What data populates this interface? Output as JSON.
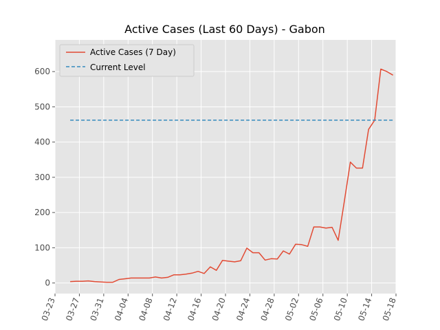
{
  "chart_data": {
    "type": "line",
    "title": "Active Cases (Last 60 Days) - Gabon",
    "xlabel": "",
    "ylabel": "",
    "x_ticks": [
      "03-23",
      "03-27",
      "03-31",
      "04-04",
      "04-08",
      "04-12",
      "04-16",
      "04-20",
      "04-24",
      "04-28",
      "05-02",
      "05-06",
      "05-10",
      "05-14",
      "05-18"
    ],
    "x_tick_days": [
      0,
      4,
      8,
      12,
      16,
      20,
      24,
      28,
      32,
      36,
      40,
      44,
      48,
      52,
      56
    ],
    "xlim_days": [
      0,
      56
    ],
    "y_ticks": [
      0,
      100,
      200,
      300,
      400,
      500,
      600
    ],
    "ylim": [
      -30,
      690
    ],
    "grid": true,
    "legend_position": "top-left",
    "series": [
      {
        "name": "Active Cases (7 Day)",
        "color": "#E24A33",
        "style": "solid",
        "x_days": [
          2.5,
          3.5,
          4.5,
          5.5,
          6.5,
          7.5,
          8.5,
          9.5,
          10.5,
          11.5,
          12.5,
          13.5,
          14.5,
          15.5,
          16.5,
          17.5,
          18.5,
          19.5,
          20.5,
          21.5,
          22.5,
          23.5,
          24.5,
          25.5,
          26.5,
          27.5,
          28.5,
          29.5,
          30.5,
          31.5,
          32.5,
          33.5,
          34.5,
          35.5,
          36.5,
          37.5,
          38.5,
          39.5,
          40.5,
          41.5,
          42.5,
          43.5,
          44.5,
          45.5,
          46.5,
          47.5,
          48.5,
          49.5,
          50.5,
          51.5,
          52.5,
          53.5,
          54.5,
          55.5
        ],
        "values": [
          4,
          5,
          5,
          6,
          4,
          3,
          2,
          2,
          10,
          12,
          14,
          14,
          14,
          14,
          17,
          14,
          16,
          23,
          23,
          25,
          28,
          33,
          27,
          46,
          36,
          64,
          62,
          60,
          63,
          99,
          86,
          86,
          65,
          69,
          68,
          91,
          82,
          110,
          109,
          104,
          159,
          159,
          156,
          158,
          121,
          230,
          343,
          326,
          326,
          436,
          462,
          607,
          600,
          590
        ]
      },
      {
        "name": "Current Level",
        "color": "#348ABD",
        "style": "dashed",
        "x_days": [
          2.5,
          55.5
        ],
        "values": [
          462,
          462
        ]
      }
    ]
  }
}
